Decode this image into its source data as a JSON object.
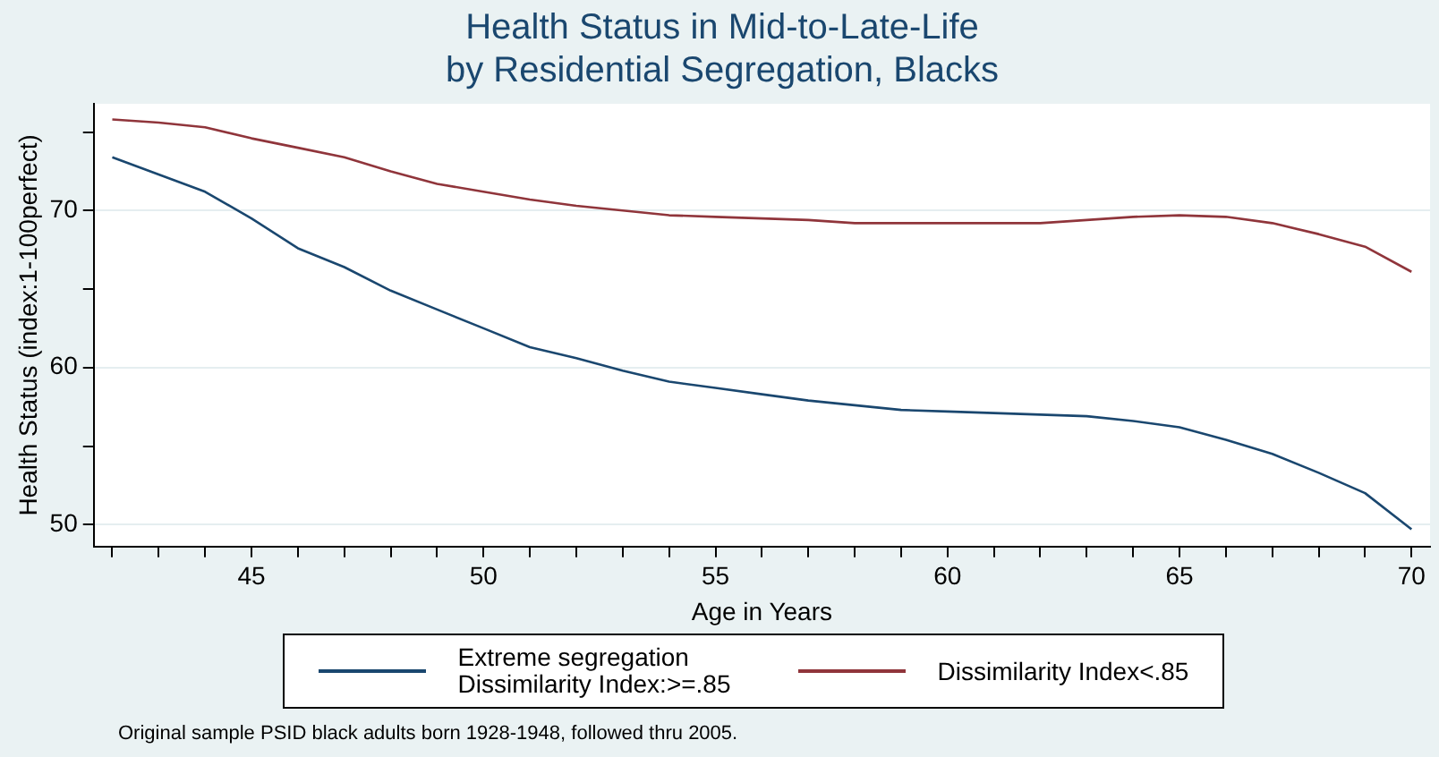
{
  "chart_data": {
    "type": "line",
    "title": "Health Status in Mid-to-Late-Life\nby Residential Segregation, Blacks",
    "xlabel": "Age in Years",
    "ylabel": "Health Status (index:1-100perfect)",
    "annotations": [
      "Original sample PSID black adults born 1928-1948, followed thru 2005."
    ],
    "x": [
      42,
      43,
      44,
      45,
      46,
      47,
      48,
      49,
      50,
      51,
      52,
      53,
      54,
      55,
      56,
      57,
      58,
      59,
      60,
      61,
      62,
      63,
      64,
      65,
      66,
      67,
      68,
      69,
      70
    ],
    "series": [
      {
        "name": "Extreme segregation\nDissimilarity Index:>=.85",
        "color": "#1a476f",
        "values": [
          73.4,
          72.3,
          71.2,
          69.5,
          67.6,
          66.4,
          64.9,
          63.7,
          62.5,
          61.3,
          60.6,
          59.8,
          59.1,
          58.7,
          58.3,
          57.9,
          57.6,
          57.3,
          57.2,
          57.1,
          57.0,
          56.9,
          56.6,
          56.2,
          55.4,
          54.5,
          53.3,
          52.0,
          49.7
        ]
      },
      {
        "name": "Dissimilarity Index<.85",
        "color": "#90353b",
        "values": [
          75.8,
          75.6,
          75.3,
          74.6,
          74.0,
          73.4,
          72.5,
          71.7,
          71.2,
          70.7,
          70.3,
          70.0,
          69.7,
          69.6,
          69.5,
          69.4,
          69.2,
          69.2,
          69.2,
          69.2,
          69.2,
          69.4,
          69.6,
          69.7,
          69.6,
          69.2,
          68.5,
          67.7,
          66.1
        ]
      }
    ],
    "xlim": [
      41.6,
      70.4
    ],
    "ylim": [
      48.6,
      76.8
    ],
    "xticks": [
      {
        "value": 42,
        "label": null
      },
      {
        "value": 43,
        "label": null
      },
      {
        "value": 44,
        "label": null
      },
      45,
      {
        "value": 46,
        "label": null
      },
      {
        "value": 47,
        "label": null
      },
      {
        "value": 48,
        "label": null
      },
      {
        "value": 49,
        "label": null
      },
      50,
      {
        "value": 51,
        "label": null
      },
      {
        "value": 52,
        "label": null
      },
      {
        "value": 53,
        "label": null
      },
      {
        "value": 54,
        "label": null
      },
      55,
      {
        "value": 56,
        "label": null
      },
      {
        "value": 57,
        "label": null
      },
      {
        "value": 58,
        "label": null
      },
      {
        "value": 59,
        "label": null
      },
      60,
      {
        "value": 61,
        "label": null
      },
      {
        "value": 62,
        "label": null
      },
      {
        "value": 63,
        "label": null
      },
      {
        "value": 64,
        "label": null
      },
      65,
      {
        "value": 66,
        "label": null
      },
      {
        "value": 67,
        "label": null
      },
      {
        "value": 68,
        "label": null
      },
      {
        "value": 69,
        "label": null
      },
      70
    ],
    "yticks": [
      50,
      {
        "value": 55,
        "label": null
      },
      60,
      {
        "value": 65,
        "label": null
      },
      70,
      {
        "value": 75,
        "label": null
      }
    ],
    "grid": "y",
    "legend": "bottom",
    "marker": "none",
    "line_style": "solid"
  }
}
